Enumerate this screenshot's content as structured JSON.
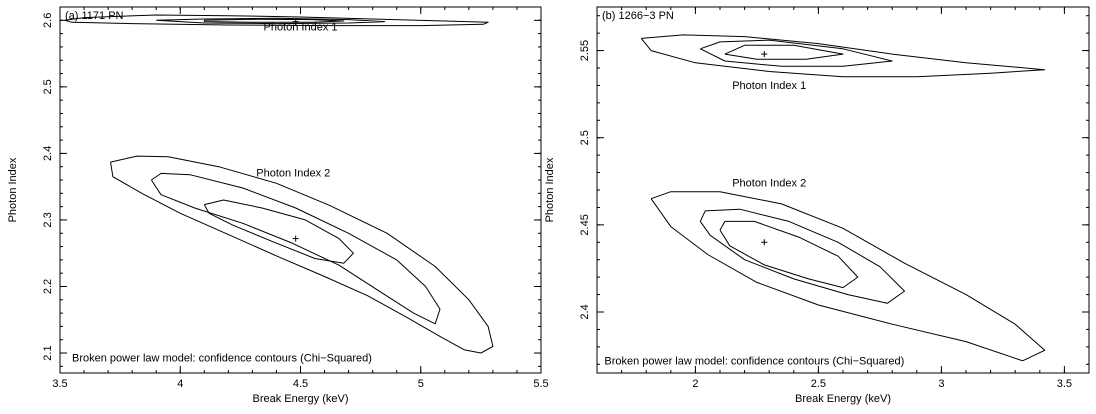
{
  "chart_data": [
    {
      "type": "contour",
      "panel_label": "(a) 1171 PN",
      "xlabel": "Break Energy (keV)",
      "ylabel": "Photon Index",
      "xlim": [
        3.5,
        5.5
      ],
      "ylim": [
        2.07,
        2.62
      ],
      "xticks": [
        3.5,
        4,
        4.5,
        5,
        5.5
      ],
      "xtick_labels": [
        "3.5",
        "4",
        "4.5",
        "5",
        "5.5"
      ],
      "yticks": [
        2.1,
        2.2,
        2.3,
        2.4,
        2.5,
        2.6
      ],
      "ytick_labels": [
        "2.1",
        "2.2",
        "2.3",
        "2.4",
        "2.5",
        "2.6"
      ],
      "annotations": [
        {
          "text": "Photon Index 1",
          "x": 4.5,
          "y": 2.585
        },
        {
          "text": "Photon Index 2",
          "x": 4.47,
          "y": 2.365
        },
        {
          "text": "Broken power law model: confidence contours (Chi−Squared)",
          "x": 3.55,
          "y": 2.087
        }
      ],
      "best_fit": [
        {
          "x": 4.48,
          "y": 2.598
        },
        {
          "x": 4.48,
          "y": 2.272
        }
      ],
      "contours": [
        [
          [
            3.52,
            2.6
          ],
          [
            3.6,
            2.604
          ],
          [
            3.9,
            2.608
          ],
          [
            4.2,
            2.607
          ],
          [
            4.5,
            2.605
          ],
          [
            4.8,
            2.602
          ],
          [
            5.1,
            2.599
          ],
          [
            5.28,
            2.597
          ],
          [
            5.26,
            2.594
          ],
          [
            5.0,
            2.592
          ],
          [
            4.6,
            2.592
          ],
          [
            4.2,
            2.593
          ],
          [
            3.8,
            2.595
          ],
          [
            3.55,
            2.597
          ],
          [
            3.52,
            2.6
          ]
        ],
        [
          [
            3.9,
            2.6
          ],
          [
            4.1,
            2.602
          ],
          [
            4.4,
            2.603
          ],
          [
            4.7,
            2.601
          ],
          [
            4.85,
            2.598
          ],
          [
            4.7,
            2.596
          ],
          [
            4.4,
            2.595
          ],
          [
            4.1,
            2.596
          ],
          [
            3.9,
            2.6
          ]
        ],
        [
          [
            4.1,
            2.6
          ],
          [
            4.3,
            2.6015
          ],
          [
            4.55,
            2.601
          ],
          [
            4.68,
            2.599
          ],
          [
            4.55,
            2.597
          ],
          [
            4.3,
            2.597
          ],
          [
            4.1,
            2.598
          ],
          [
            4.1,
            2.6
          ]
        ],
        [
          [
            3.71,
            2.387
          ],
          [
            3.72,
            2.365
          ],
          [
            3.84,
            2.34
          ],
          [
            4.0,
            2.31
          ],
          [
            4.2,
            2.278
          ],
          [
            4.4,
            2.246
          ],
          [
            4.6,
            2.215
          ],
          [
            4.78,
            2.186
          ],
          [
            4.95,
            2.152
          ],
          [
            5.08,
            2.125
          ],
          [
            5.18,
            2.105
          ],
          [
            5.25,
            2.1
          ],
          [
            5.3,
            2.11
          ],
          [
            5.28,
            2.14
          ],
          [
            5.2,
            2.18
          ],
          [
            5.06,
            2.23
          ],
          [
            4.86,
            2.28
          ],
          [
            4.62,
            2.322
          ],
          [
            4.4,
            2.355
          ],
          [
            4.16,
            2.38
          ],
          [
            3.95,
            2.395
          ],
          [
            3.82,
            2.396
          ],
          [
            3.71,
            2.387
          ]
        ],
        [
          [
            3.88,
            2.36
          ],
          [
            3.92,
            2.338
          ],
          [
            4.06,
            2.318
          ],
          [
            4.26,
            2.295
          ],
          [
            4.46,
            2.266
          ],
          [
            4.66,
            2.232
          ],
          [
            4.84,
            2.19
          ],
          [
            4.97,
            2.16
          ],
          [
            5.06,
            2.144
          ],
          [
            5.08,
            2.166
          ],
          [
            5.02,
            2.2
          ],
          [
            4.9,
            2.24
          ],
          [
            4.7,
            2.28
          ],
          [
            4.48,
            2.318
          ],
          [
            4.26,
            2.348
          ],
          [
            4.04,
            2.368
          ],
          [
            3.92,
            2.37
          ],
          [
            3.88,
            2.36
          ]
        ],
        [
          [
            4.1,
            2.323
          ],
          [
            4.12,
            2.31
          ],
          [
            4.22,
            2.292
          ],
          [
            4.38,
            2.268
          ],
          [
            4.56,
            2.242
          ],
          [
            4.68,
            2.235
          ],
          [
            4.72,
            2.25
          ],
          [
            4.66,
            2.272
          ],
          [
            4.52,
            2.3
          ],
          [
            4.34,
            2.318
          ],
          [
            4.18,
            2.33
          ],
          [
            4.1,
            2.323
          ]
        ]
      ]
    },
    {
      "type": "contour",
      "panel_label": "(b) 1266−3 PN",
      "xlabel": "Break Energy (keV)",
      "ylabel": "Photon Index",
      "xlim": [
        1.6,
        3.6
      ],
      "ylim": [
        2.365,
        2.575
      ],
      "xticks": [
        2,
        2.5,
        3,
        3.5
      ],
      "xtick_labels": [
        "2",
        "2.5",
        "3",
        "3.5"
      ],
      "yticks": [
        2.4,
        2.45,
        2.5,
        2.55
      ],
      "ytick_labels": [
        "2.4",
        "2.45",
        "2.5",
        "2.55"
      ],
      "annotations": [
        {
          "text": "Photon Index 1",
          "x": 2.3,
          "y": 2.528
        },
        {
          "text": "Photon Index 2",
          "x": 2.3,
          "y": 2.472
        },
        {
          "text": "Broken power law model: confidence contours (Chi−Squared)",
          "x": 1.63,
          "y": 2.37
        }
      ],
      "best_fit": [
        {
          "x": 2.28,
          "y": 2.548
        },
        {
          "x": 2.28,
          "y": 2.44
        }
      ],
      "contours": [
        [
          [
            1.78,
            2.557
          ],
          [
            1.95,
            2.559
          ],
          [
            2.2,
            2.558
          ],
          [
            2.5,
            2.554
          ],
          [
            2.8,
            2.548
          ],
          [
            3.1,
            2.543
          ],
          [
            3.42,
            2.539
          ],
          [
            3.2,
            2.537
          ],
          [
            2.9,
            2.535
          ],
          [
            2.6,
            2.535
          ],
          [
            2.3,
            2.538
          ],
          [
            2.0,
            2.543
          ],
          [
            1.82,
            2.55
          ],
          [
            1.78,
            2.557
          ]
        ],
        [
          [
            2.02,
            2.551
          ],
          [
            2.1,
            2.555
          ],
          [
            2.3,
            2.556
          ],
          [
            2.6,
            2.551
          ],
          [
            2.8,
            2.544
          ],
          [
            2.6,
            2.541
          ],
          [
            2.35,
            2.541
          ],
          [
            2.12,
            2.544
          ],
          [
            2.02,
            2.551
          ]
        ],
        [
          [
            2.12,
            2.548
          ],
          [
            2.2,
            2.553
          ],
          [
            2.4,
            2.553
          ],
          [
            2.6,
            2.548
          ],
          [
            2.45,
            2.545
          ],
          [
            2.25,
            2.545
          ],
          [
            2.12,
            2.548
          ]
        ],
        [
          [
            1.82,
            2.465
          ],
          [
            1.9,
            2.449
          ],
          [
            2.05,
            2.433
          ],
          [
            2.25,
            2.417
          ],
          [
            2.5,
            2.404
          ],
          [
            2.8,
            2.393
          ],
          [
            3.1,
            2.383
          ],
          [
            3.33,
            2.372
          ],
          [
            3.42,
            2.378
          ],
          [
            3.3,
            2.393
          ],
          [
            3.1,
            2.41
          ],
          [
            2.85,
            2.428
          ],
          [
            2.6,
            2.448
          ],
          [
            2.35,
            2.462
          ],
          [
            2.1,
            2.469
          ],
          [
            1.9,
            2.469
          ],
          [
            1.82,
            2.465
          ]
        ],
        [
          [
            2.02,
            2.452
          ],
          [
            2.06,
            2.444
          ],
          [
            2.2,
            2.43
          ],
          [
            2.4,
            2.419
          ],
          [
            2.62,
            2.41
          ],
          [
            2.78,
            2.405
          ],
          [
            2.85,
            2.412
          ],
          [
            2.75,
            2.426
          ],
          [
            2.58,
            2.44
          ],
          [
            2.38,
            2.452
          ],
          [
            2.18,
            2.459
          ],
          [
            2.04,
            2.458
          ],
          [
            2.02,
            2.452
          ]
        ],
        [
          [
            2.1,
            2.447
          ],
          [
            2.14,
            2.438
          ],
          [
            2.28,
            2.427
          ],
          [
            2.46,
            2.419
          ],
          [
            2.6,
            2.414
          ],
          [
            2.66,
            2.42
          ],
          [
            2.58,
            2.432
          ],
          [
            2.42,
            2.443
          ],
          [
            2.24,
            2.452
          ],
          [
            2.12,
            2.452
          ],
          [
            2.1,
            2.447
          ]
        ]
      ]
    }
  ]
}
